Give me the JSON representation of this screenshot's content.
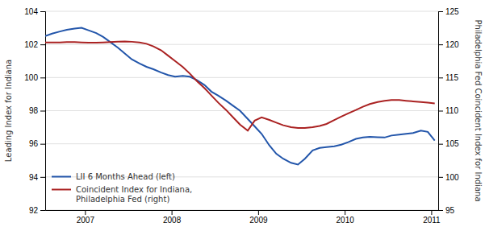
{
  "chart_data": {
    "type": "line",
    "ylabel": "Leading Index for Indiana",
    "y2label": "Philadelphia Fed Coincident Index for Indiana",
    "x": [
      2006.54,
      2006.62,
      2006.71,
      2006.79,
      2006.88,
      2006.96,
      2007.04,
      2007.13,
      2007.21,
      2007.29,
      2007.38,
      2007.46,
      2007.54,
      2007.63,
      2007.71,
      2007.79,
      2007.88,
      2007.96,
      2008.04,
      2008.13,
      2008.21,
      2008.29,
      2008.38,
      2008.46,
      2008.54,
      2008.63,
      2008.71,
      2008.79,
      2008.88,
      2008.96,
      2009.04,
      2009.13,
      2009.21,
      2009.29,
      2009.38,
      2009.46,
      2009.54,
      2009.63,
      2009.71,
      2009.79,
      2009.88,
      2009.96,
      2010.04,
      2010.13,
      2010.21,
      2010.29,
      2010.38,
      2010.46,
      2010.54,
      2010.63,
      2010.71,
      2010.79,
      2010.88,
      2010.96,
      2011.04
    ],
    "series": [
      {
        "name": "LII 6 Months Ahead (left)",
        "color": "#2255aa",
        "values": [
          102.5,
          102.65,
          102.78,
          102.88,
          102.95,
          103.0,
          102.85,
          102.68,
          102.45,
          102.15,
          101.8,
          101.45,
          101.1,
          100.85,
          100.65,
          100.5,
          100.3,
          100.15,
          100.05,
          100.1,
          100.05,
          99.85,
          99.55,
          99.15,
          98.9,
          98.6,
          98.3,
          98.0,
          97.5,
          97.05,
          96.6,
          95.9,
          95.4,
          95.1,
          94.85,
          94.75,
          95.1,
          95.6,
          95.75,
          95.8,
          95.85,
          95.95,
          96.1,
          96.3,
          96.38,
          96.42,
          96.4,
          96.38,
          96.5,
          96.55,
          96.6,
          96.65,
          96.8,
          96.72,
          96.2
        ]
      },
      {
        "name": "Coincident Index for Indiana,\nPhiladelphia Fed (right)",
        "color": "#aa2222",
        "axis": "y2",
        "values": [
          120.3,
          120.3,
          120.3,
          120.35,
          120.35,
          120.3,
          120.25,
          120.25,
          120.3,
          120.35,
          120.4,
          120.45,
          120.4,
          120.3,
          120.1,
          119.7,
          119.1,
          118.3,
          117.5,
          116.6,
          115.6,
          114.5,
          113.4,
          112.3,
          111.2,
          110.1,
          109.0,
          107.9,
          107.0,
          108.5,
          109.0,
          108.6,
          108.2,
          107.8,
          107.5,
          107.4,
          107.4,
          107.5,
          107.7,
          108.0,
          108.6,
          109.1,
          109.6,
          110.1,
          110.6,
          111.0,
          111.3,
          111.5,
          111.6,
          111.6,
          111.5,
          111.4,
          111.3,
          111.2,
          111.1
        ]
      }
    ],
    "xlim": [
      2006.54,
      2011.08
    ],
    "xticks": [
      2007,
      2008,
      2009,
      2010,
      2011
    ],
    "ylim": [
      92,
      104
    ],
    "yticks": [
      92,
      94,
      96,
      98,
      100,
      102,
      104
    ],
    "y2lim": [
      95,
      125
    ],
    "y2ticks": [
      95,
      100,
      105,
      110,
      115,
      120,
      125
    ],
    "grid": true,
    "legend": "lower left"
  }
}
